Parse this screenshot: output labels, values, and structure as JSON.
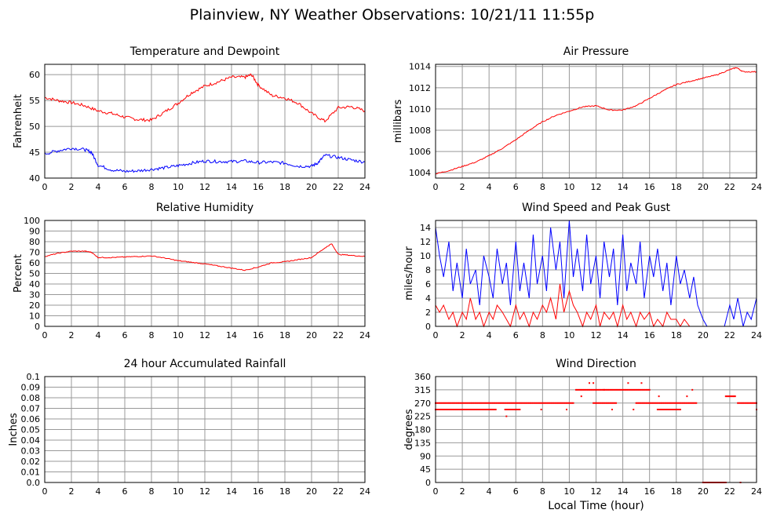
{
  "page": {
    "title": "Plainview, NY Weather Observations: 10/21/11 11:55p",
    "bottom_xlabel": "Local Time (hour)"
  },
  "colors": {
    "temperature": "#ff0000",
    "dewpoint": "#0000ff",
    "pressure": "#ff0000",
    "humidity": "#ff0000",
    "wind_speed": "#0000ff",
    "wind_gust": "#ff0000",
    "rainfall": "#ff0000",
    "wind_direction": "#ff0000",
    "grid": "#999999",
    "frame": "#000000"
  },
  "chart_data": [
    {
      "id": "temp",
      "type": "line",
      "title": "Temperature and Dewpoint",
      "xlabel": "",
      "ylabel": "Fahrenheit",
      "xlim": [
        0,
        24
      ],
      "ylim": [
        40,
        62
      ],
      "xticks": [
        "0",
        "2",
        "4",
        "6",
        "8",
        "10",
        "12",
        "14",
        "16",
        "18",
        "20",
        "22",
        "24"
      ],
      "yticks": [
        "40",
        "45",
        "50",
        "55",
        "60"
      ],
      "grid": true,
      "series": [
        {
          "color": "#ff0000",
          "noise": 0.3,
          "x": [
            0,
            1,
            2,
            3,
            4,
            5,
            6,
            7,
            8,
            9,
            10,
            11,
            12,
            13,
            14,
            15,
            15.5,
            16,
            17,
            18,
            19,
            20,
            21,
            22,
            23,
            24
          ],
          "y": [
            55.6,
            55,
            54.6,
            54,
            53,
            52.5,
            51.8,
            51.3,
            51.2,
            52.8,
            54.5,
            56.5,
            57.8,
            58.6,
            59.5,
            59.5,
            60,
            58,
            56,
            55.5,
            54.5,
            52.5,
            51,
            53.6,
            53.8,
            53
          ]
        },
        {
          "color": "#0000ff",
          "noise": 0.3,
          "x": [
            0,
            1,
            2,
            3,
            3.5,
            4,
            5,
            6,
            7,
            8,
            9,
            10,
            11,
            12,
            13,
            14,
            15,
            16,
            17,
            18,
            19,
            20,
            20.5,
            21,
            22,
            23,
            24
          ],
          "y": [
            44.7,
            45.3,
            45.8,
            45.5,
            45,
            42.5,
            41.6,
            41.3,
            41.4,
            41.7,
            42,
            42.4,
            42.9,
            43.3,
            43.2,
            43.2,
            43.3,
            43,
            43.1,
            42.9,
            42.3,
            42.3,
            43,
            44.4,
            44,
            43.5,
            43.1
          ]
        }
      ]
    },
    {
      "id": "pressure",
      "type": "line",
      "title": "Air Pressure",
      "xlabel": "",
      "ylabel": "millibars",
      "xlim": [
        0,
        24
      ],
      "ylim": [
        1003.5,
        1014.2
      ],
      "xticks": [
        "0",
        "2",
        "4",
        "6",
        "8",
        "10",
        "12",
        "14",
        "16",
        "18",
        "20",
        "22",
        "24"
      ],
      "yticks": [
        "1004",
        "1006",
        "1008",
        "1010",
        "1012",
        "1014"
      ],
      "grid": true,
      "series": [
        {
          "color": "#ff0000",
          "noise": 0.05,
          "x": [
            0,
            1,
            2,
            3,
            4,
            5,
            6,
            7,
            8,
            9,
            10,
            11,
            12,
            13,
            14,
            15,
            16,
            17,
            18,
            19,
            20,
            21,
            22,
            22.5,
            23,
            24
          ],
          "y": [
            1003.9,
            1004.2,
            1004.6,
            1005,
            1005.6,
            1006.3,
            1007.1,
            1008,
            1008.8,
            1009.4,
            1009.8,
            1010.2,
            1010.3,
            1009.9,
            1009.9,
            1010.3,
            1011,
            1011.7,
            1012.3,
            1012.6,
            1012.9,
            1013.2,
            1013.7,
            1013.9,
            1013.5,
            1013.5
          ]
        }
      ]
    },
    {
      "id": "humidity",
      "type": "line",
      "title": "Relative Humidity",
      "xlabel": "",
      "ylabel": "Percent",
      "xlim": [
        0,
        24
      ],
      "ylim": [
        0,
        100
      ],
      "xticks": [
        "0",
        "2",
        "4",
        "6",
        "8",
        "10",
        "12",
        "14",
        "16",
        "18",
        "20",
        "22",
        "24"
      ],
      "yticks": [
        "0",
        "10",
        "20",
        "30",
        "40",
        "50",
        "60",
        "70",
        "80",
        "90",
        "100"
      ],
      "grid": true,
      "series": [
        {
          "color": "#ff0000",
          "noise": 0.4,
          "x": [
            0,
            1,
            2,
            3,
            3.5,
            4,
            5,
            6,
            7,
            8,
            9,
            10,
            11,
            12,
            13,
            14,
            15,
            16,
            17,
            18,
            19,
            20,
            21,
            21.5,
            22,
            23,
            24
          ],
          "y": [
            66,
            69,
            71,
            71,
            70,
            65,
            65,
            65.5,
            66,
            66.5,
            64.5,
            62,
            60.5,
            59,
            57,
            55,
            53,
            56,
            60,
            61,
            63,
            65,
            74,
            78,
            68,
            67,
            66
          ]
        }
      ]
    },
    {
      "id": "wind",
      "type": "line",
      "title": "Wind Speed and Peak Gust",
      "xlabel": "",
      "ylabel": "miles/hour",
      "xlim": [
        0,
        24
      ],
      "ylim": [
        0,
        15
      ],
      "xticks": [
        "0",
        "2",
        "4",
        "6",
        "8",
        "10",
        "12",
        "14",
        "16",
        "18",
        "20",
        "22",
        "24"
      ],
      "yticks": [
        "0",
        "2",
        "4",
        "6",
        "8",
        "10",
        "12",
        "14"
      ],
      "grid": true,
      "series": [
        {
          "color": "#0000ff",
          "noise": 0,
          "x": [
            0,
            0.3,
            0.6,
            1,
            1.3,
            1.6,
            2,
            2.3,
            2.6,
            3,
            3.3,
            3.6,
            4,
            4.3,
            4.6,
            5,
            5.3,
            5.6,
            6,
            6.3,
            6.6,
            7,
            7.3,
            7.6,
            8,
            8.3,
            8.6,
            9,
            9.3,
            9.6,
            10,
            10.3,
            10.6,
            11,
            11.3,
            11.6,
            12,
            12.3,
            12.6,
            13,
            13.3,
            13.6,
            14,
            14.3,
            14.6,
            15,
            15.3,
            15.6,
            16,
            16.3,
            16.6,
            17,
            17.3,
            17.6,
            18,
            18.3,
            18.6,
            19,
            19.3,
            19.6,
            20,
            20.3,
            20.6,
            21,
            21.3,
            21.6,
            22,
            22.3,
            22.6,
            23,
            23.3,
            23.6,
            24
          ],
          "y": [
            14,
            10,
            7,
            12,
            5,
            9,
            4,
            11,
            6,
            8,
            3,
            10,
            7,
            4,
            11,
            6,
            9,
            3,
            12,
            5,
            9,
            4,
            13,
            6,
            10,
            5,
            14,
            8,
            12,
            4,
            15,
            7,
            11,
            5,
            13,
            6,
            10,
            4,
            12,
            7,
            11,
            3,
            13,
            5,
            9,
            6,
            12,
            4,
            10,
            7,
            11,
            5,
            9,
            3,
            10,
            6,
            8,
            4,
            7,
            3,
            1,
            0,
            0,
            0,
            0,
            0,
            3,
            1,
            4,
            0,
            2,
            1,
            4
          ]
        },
        {
          "color": "#ff0000",
          "noise": 0,
          "x": [
            0,
            0.3,
            0.6,
            1,
            1.3,
            1.6,
            2,
            2.3,
            2.6,
            3,
            3.3,
            3.6,
            4,
            4.3,
            4.6,
            5,
            5.3,
            5.6,
            6,
            6.3,
            6.6,
            7,
            7.3,
            7.6,
            8,
            8.3,
            8.6,
            9,
            9.3,
            9.6,
            10,
            10.3,
            10.6,
            11,
            11.3,
            11.6,
            12,
            12.3,
            12.6,
            13,
            13.3,
            13.6,
            14,
            14.3,
            14.6,
            15,
            15.3,
            15.6,
            16,
            16.3,
            16.6,
            17,
            17.3,
            17.6,
            18,
            18.3,
            18.6,
            19,
            19.3,
            19.6,
            20,
            20.3,
            20.6,
            21,
            21.3,
            21.6,
            22,
            22.3,
            22.6,
            23,
            23.3,
            23.6,
            24
          ],
          "y": [
            3,
            2,
            3,
            1,
            2,
            0,
            2,
            1,
            4,
            1,
            2,
            0,
            2,
            1,
            3,
            2,
            1,
            0,
            3,
            1,
            2,
            0,
            2,
            1,
            3,
            2,
            4,
            1,
            6,
            2,
            5,
            3,
            2,
            0,
            2,
            1,
            3,
            0,
            2,
            1,
            2,
            0,
            3,
            1,
            2,
            0,
            2,
            1,
            2,
            0,
            1,
            0,
            2,
            1,
            1,
            0,
            1,
            0,
            0,
            0,
            0,
            0,
            0,
            0,
            0,
            0,
            0,
            0,
            0,
            0,
            0,
            0,
            0
          ]
        }
      ]
    },
    {
      "id": "rain",
      "type": "line",
      "title": "24 hour Accumulated Rainfall",
      "xlabel": "",
      "ylabel": "Inches",
      "xlim": [
        0,
        24
      ],
      "ylim": [
        0,
        0.1
      ],
      "xticks": [
        "0",
        "2",
        "4",
        "6",
        "8",
        "10",
        "12",
        "14",
        "16",
        "18",
        "20",
        "22",
        "24"
      ],
      "yticks": [
        "0.0",
        "0.01",
        "0.02",
        "0.03",
        "0.04",
        "0.05",
        "0.06",
        "0.07",
        "0.08",
        "0.09",
        "0.1"
      ],
      "grid": true,
      "series": [
        {
          "color": "#ff0000",
          "noise": 0,
          "x": [
            0,
            24
          ],
          "y": [
            0,
            0
          ]
        }
      ]
    },
    {
      "id": "direction",
      "type": "scatter",
      "title": "Wind Direction",
      "xlabel": "Local Time (hour)",
      "ylabel": "degrees",
      "xlim": [
        0,
        24
      ],
      "ylim": [
        0,
        360
      ],
      "xticks": [
        "0",
        "2",
        "4",
        "6",
        "8",
        "10",
        "12",
        "14",
        "16",
        "18",
        "20",
        "22",
        "24"
      ],
      "yticks": [
        "0",
        "45",
        "90",
        "135",
        "180",
        "225",
        "270",
        "315",
        "360"
      ],
      "grid": true,
      "series": [
        {
          "color": "#ff0000",
          "segments": [
            {
              "x0": 0,
              "x1": 10.3,
              "y": 270
            },
            {
              "x0": 0,
              "x1": 4.5,
              "y": 248
            },
            {
              "x0": 5.2,
              "x1": 6.3,
              "y": 248
            },
            {
              "x0": 10.5,
              "x1": 12.6,
              "y": 315
            },
            {
              "x0": 12.6,
              "x1": 16,
              "y": 315
            },
            {
              "x0": 11.8,
              "x1": 13.5,
              "y": 270
            },
            {
              "x0": 15,
              "x1": 19.5,
              "y": 270
            },
            {
              "x0": 16.6,
              "x1": 18.3,
              "y": 248
            },
            {
              "x0": 20,
              "x1": 21.7,
              "y": 0
            },
            {
              "x0": 21.7,
              "x1": 22.4,
              "y": 293
            },
            {
              "x0": 22.6,
              "x1": 24,
              "y": 270
            }
          ],
          "points": [
            [
              5.3,
              225
            ],
            [
              10.9,
              293
            ],
            [
              11.5,
              338
            ],
            [
              11.8,
              338
            ],
            [
              14.4,
              338
            ],
            [
              15.4,
              338
            ],
            [
              16.7,
              293
            ],
            [
              18.8,
              293
            ],
            [
              19.2,
              315
            ],
            [
              22.8,
              0
            ],
            [
              24,
              248
            ],
            [
              13.2,
              248
            ],
            [
              14.8,
              248
            ],
            [
              9.8,
              248
            ],
            [
              7.9,
              248
            ]
          ]
        }
      ]
    }
  ]
}
